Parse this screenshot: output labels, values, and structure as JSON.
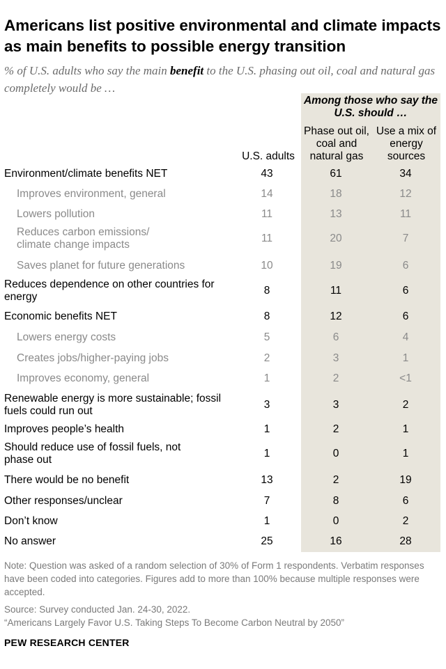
{
  "title": "Americans list positive environmental and climate impacts as main benefits to possible energy transition",
  "subtitle_pre": "% of U.S. adults who say the main ",
  "subtitle_bold": "benefit",
  "subtitle_post": " to the U.S. phasing out oil, coal and natural gas completely would be …",
  "chart_data": {
    "type": "table",
    "group_header": "Among those who say the U.S. should …",
    "columns": [
      "U.S. adults",
      "Phase out oil, coal and natural gas",
      "Use a mix of energy sources"
    ],
    "rows": [
      {
        "label": "Environment/climate benefits NET",
        "level": 0,
        "values": [
          "43",
          "61",
          "34"
        ]
      },
      {
        "label": "Improves environment, general",
        "level": 1,
        "values": [
          "14",
          "18",
          "12"
        ]
      },
      {
        "label": "Lowers pollution",
        "level": 1,
        "values": [
          "11",
          "13",
          "11"
        ]
      },
      {
        "label": "Reduces carbon emissions/ climate change impacts",
        "level": 1,
        "values": [
          "11",
          "20",
          "7"
        ]
      },
      {
        "label": "Saves planet for future generations",
        "level": 1,
        "values": [
          "10",
          "19",
          "6"
        ]
      },
      {
        "label": "Reduces dependence on other countries for energy",
        "level": 0,
        "values": [
          "8",
          "11",
          "6"
        ]
      },
      {
        "label": "Economic benefits NET",
        "level": 0,
        "values": [
          "8",
          "12",
          "6"
        ]
      },
      {
        "label": "Lowers energy costs",
        "level": 1,
        "values": [
          "5",
          "6",
          "4"
        ]
      },
      {
        "label": "Creates jobs/higher-paying jobs",
        "level": 1,
        "values": [
          "2",
          "3",
          "1"
        ]
      },
      {
        "label": "Improves economy, general",
        "level": 1,
        "values": [
          "1",
          "2",
          "<1"
        ]
      },
      {
        "label": "Renewable energy is more sustainable; fossil fuels could run out",
        "level": 0,
        "values": [
          "3",
          "3",
          "2"
        ]
      },
      {
        "label": "Improves people’s health",
        "level": 0,
        "values": [
          "1",
          "2",
          "1"
        ]
      },
      {
        "label": "Should reduce use of fossil fuels, not phase out",
        "level": 0,
        "values": [
          "1",
          "0",
          "1"
        ]
      },
      {
        "label": "There would be no benefit",
        "level": 0,
        "values": [
          "13",
          "2",
          "19"
        ]
      },
      {
        "label": "Other responses/unclear",
        "level": 0,
        "values": [
          "7",
          "8",
          "6"
        ]
      },
      {
        "label": "Don’t know",
        "level": 0,
        "values": [
          "1",
          "0",
          "2"
        ]
      },
      {
        "label": "No answer",
        "level": 0,
        "values": [
          "25",
          "16",
          "28"
        ]
      }
    ]
  },
  "note": "Note: Question was asked of a random selection of 30% of Form 1 respondents. Verbatim responses have been coded into categories. Figures add to more than 100% because multiple responses were accepted.",
  "source": "Source: Survey conducted Jan. 24-30, 2022.",
  "report": "“Americans Largely Favor U.S. Taking Steps To Become Carbon Neutral by 2050”",
  "org": "PEW RESEARCH CENTER",
  "colors": {
    "shade": "#e8e5dc",
    "sub_text": "#8a8a8a",
    "note_text": "#7a7a7a"
  }
}
